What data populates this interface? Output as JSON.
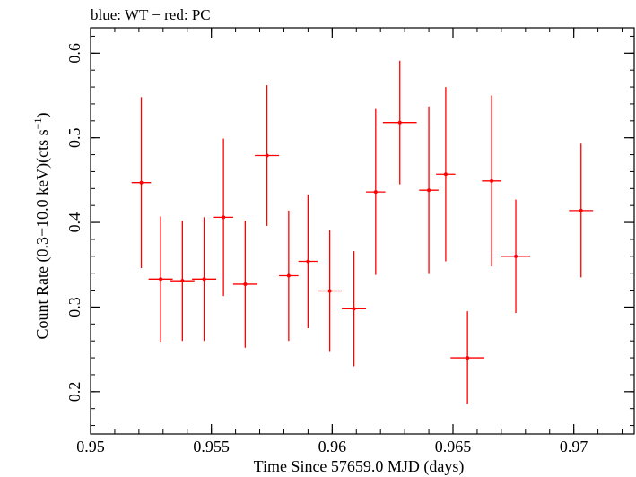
{
  "chart_data": {
    "type": "scatter",
    "title": "blue: WT − red: PC",
    "xlabel": "Time Since 57659.0 MJD (days)",
    "ylabel_main": "Count Rate (0.3−10.0 keV)(cts s",
    "ylabel_sup": "−1",
    "ylabel_tail": ")",
    "xlim": [
      0.95,
      0.9725
    ],
    "ylim": [
      0.15,
      0.63
    ],
    "x_ticks": [
      0.95,
      0.955,
      0.96,
      0.965,
      0.97
    ],
    "x_tick_labels": [
      "0.95",
      "0.955",
      "0.96",
      "0.965",
      "0.97"
    ],
    "y_ticks": [
      0.2,
      0.3,
      0.4,
      0.5,
      0.6
    ],
    "y_tick_labels": [
      "0.2",
      "0.3",
      "0.4",
      "0.5",
      "0.6"
    ],
    "grid": false,
    "series": [
      {
        "color": "#ff0000",
        "points": [
          {
            "x": 0.9521,
            "xerr": 0.0004,
            "y": 0.447,
            "yerr_low": 0.101,
            "yerr_high": 0.101
          },
          {
            "x": 0.9529,
            "xerr": 0.0005,
            "y": 0.333,
            "yerr_low": 0.074,
            "yerr_high": 0.074
          },
          {
            "x": 0.9538,
            "xerr": 0.0005,
            "y": 0.331,
            "yerr_low": 0.071,
            "yerr_high": 0.071
          },
          {
            "x": 0.9547,
            "xerr": 0.0005,
            "y": 0.333,
            "yerr_low": 0.073,
            "yerr_high": 0.073
          },
          {
            "x": 0.9555,
            "xerr": 0.0004,
            "y": 0.406,
            "yerr_low": 0.093,
            "yerr_high": 0.093
          },
          {
            "x": 0.9564,
            "xerr": 0.0005,
            "y": 0.327,
            "yerr_low": 0.075,
            "yerr_high": 0.075
          },
          {
            "x": 0.9573,
            "xerr": 0.0005,
            "y": 0.479,
            "yerr_low": 0.083,
            "yerr_high": 0.083
          },
          {
            "x": 0.9582,
            "xerr": 0.0004,
            "y": 0.337,
            "yerr_low": 0.077,
            "yerr_high": 0.077
          },
          {
            "x": 0.959,
            "xerr": 0.0004,
            "y": 0.354,
            "yerr_low": 0.079,
            "yerr_high": 0.079
          },
          {
            "x": 0.9599,
            "xerr": 0.0005,
            "y": 0.319,
            "yerr_low": 0.072,
            "yerr_high": 0.072
          },
          {
            "x": 0.9609,
            "xerr": 0.0005,
            "y": 0.298,
            "yerr_low": 0.068,
            "yerr_high": 0.068
          },
          {
            "x": 0.9618,
            "xerr": 0.0004,
            "y": 0.436,
            "yerr_low": 0.098,
            "yerr_high": 0.098
          },
          {
            "x": 0.9628,
            "xerr": 0.0007,
            "y": 0.518,
            "yerr_low": 0.073,
            "yerr_high": 0.073
          },
          {
            "x": 0.964,
            "xerr": 0.0004,
            "y": 0.438,
            "yerr_low": 0.099,
            "yerr_high": 0.099
          },
          {
            "x": 0.9647,
            "xerr": 0.0004,
            "y": 0.457,
            "yerr_low": 0.103,
            "yerr_high": 0.103
          },
          {
            "x": 0.9656,
            "xerr": 0.0007,
            "y": 0.24,
            "yerr_low": 0.055,
            "yerr_high": 0.055
          },
          {
            "x": 0.9666,
            "xerr": 0.0004,
            "y": 0.449,
            "yerr_low": 0.101,
            "yerr_high": 0.101
          },
          {
            "x": 0.9676,
            "xerr": 0.0006,
            "y": 0.36,
            "yerr_low": 0.067,
            "yerr_high": 0.067
          },
          {
            "x": 0.9703,
            "xerr": 0.0005,
            "y": 0.414,
            "yerr_low": 0.079,
            "yerr_high": 0.079
          }
        ]
      }
    ]
  }
}
